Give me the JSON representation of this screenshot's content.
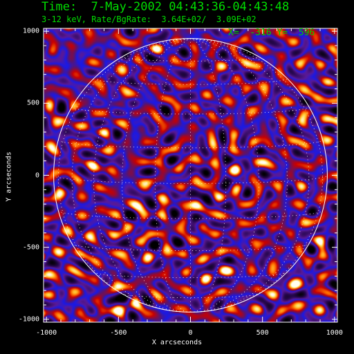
{
  "title": "Time:  7-May-2002 04:43:36-04:43:48",
  "subtitle": "3-12 keV, Rate/BgRate:  3.64E+02/  3.09E+02",
  "cursor_readout": "X=  -316 Y=  596",
  "colors": {
    "title_text": "#00dd00",
    "axes": "#ffffff",
    "background": "#000000",
    "colormap": [
      "#000000",
      "#2a0a55",
      "#5a1a9a",
      "#1a1aff",
      "#cc0000",
      "#ff6600",
      "#ffcc33",
      "#ffffff"
    ]
  },
  "chart_data": {
    "type": "heatmap",
    "title": "Time:  7-May-2002 04:43:36-04:43:48",
    "subtitle": "3-12 keV, Rate/BgRate:  3.64E+02/  3.09E+02",
    "xlabel": "X arcseconds",
    "ylabel": "Y arcseconds",
    "xlim": [
      -1020,
      1020
    ],
    "ylim": [
      -1020,
      1020
    ],
    "x_ticks": [
      "-1000",
      "-500",
      "0",
      "500",
      "1000"
    ],
    "y_ticks": [
      "1000",
      "500",
      "0",
      "-500",
      "-1000"
    ],
    "x_tick_values": [
      -1000,
      -500,
      0,
      500,
      1000
    ],
    "y_tick_values": [
      1000,
      500,
      0,
      -500,
      -1000
    ],
    "solar_limb_radius": 950,
    "grid": true,
    "grid_style": "dotted heliographic lat/lon"
  }
}
